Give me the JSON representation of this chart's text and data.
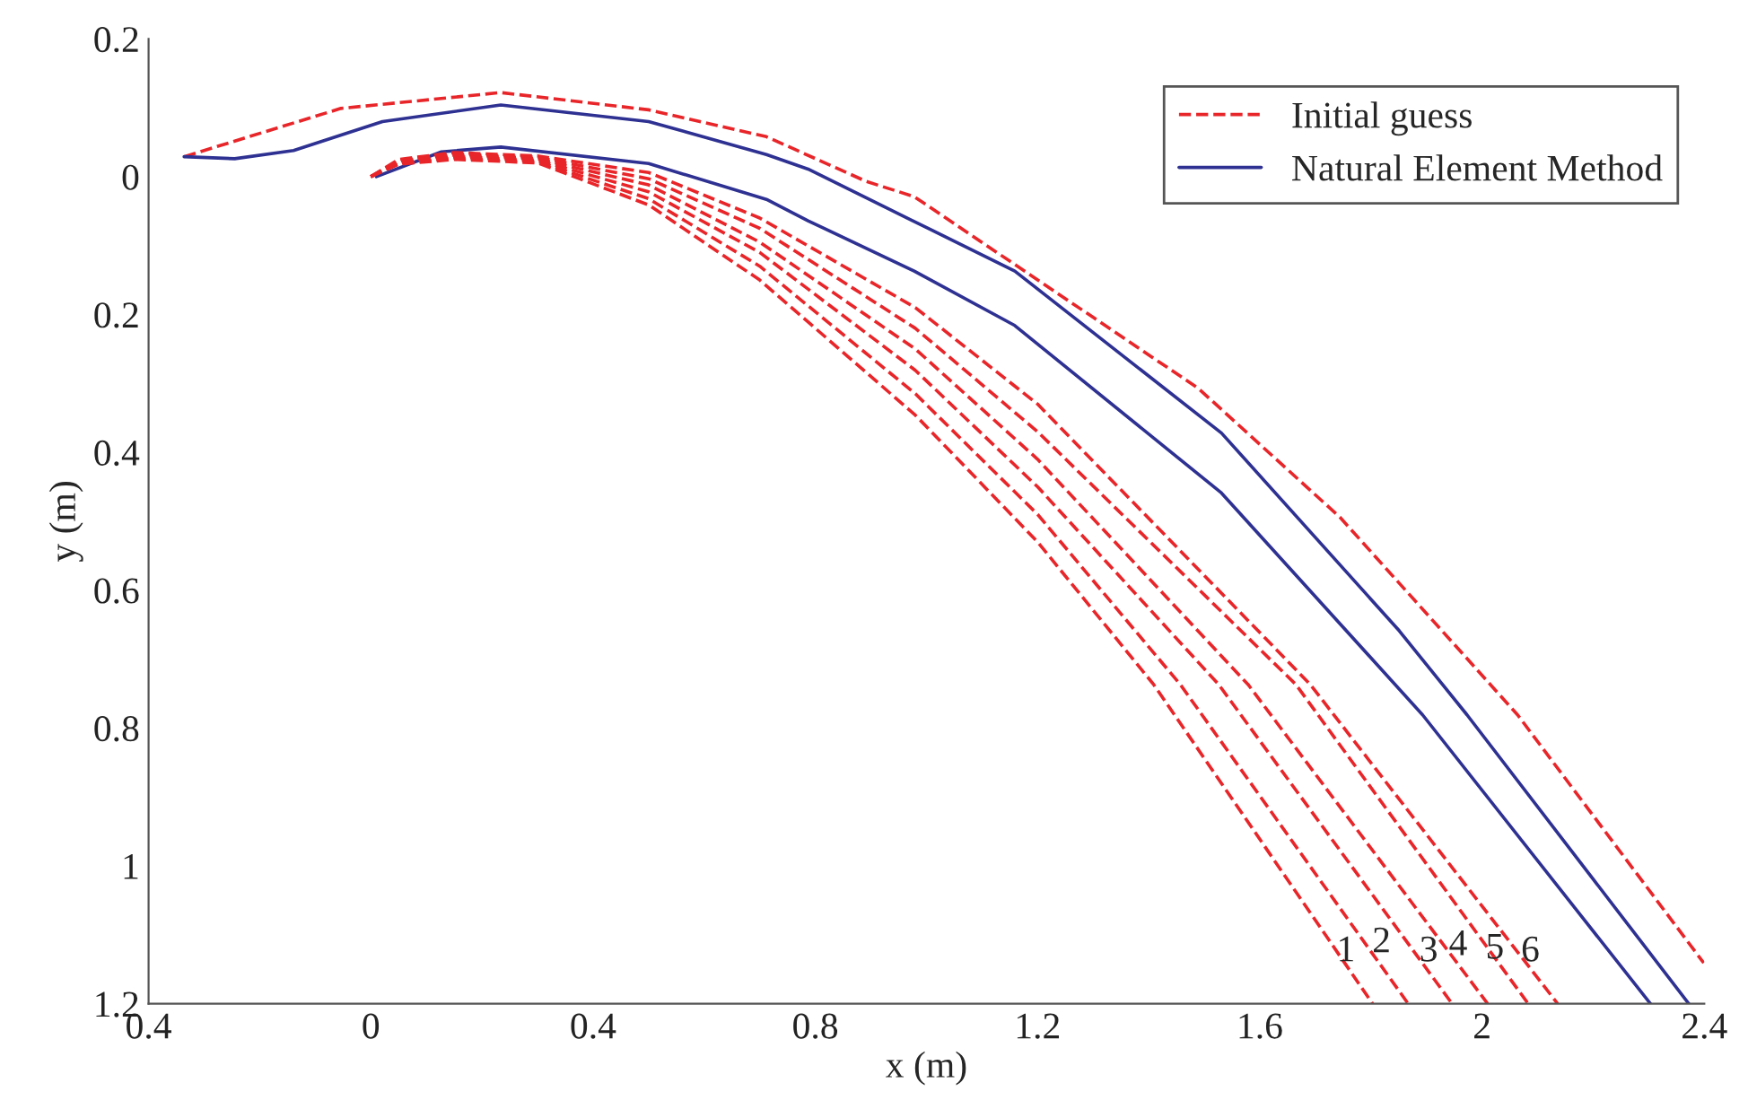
{
  "chart_data": {
    "type": "line",
    "xlabel": "x (m)",
    "ylabel": "y (m)",
    "xlim": [
      -0.4,
      2.4
    ],
    "ylim": [
      1.2,
      -0.2
    ],
    "xticks": [
      {
        "value": -0.4,
        "label": "0.4"
      },
      0,
      0.4,
      0.8,
      1.2,
      1.6,
      2,
      2.4
    ],
    "yticks": [
      {
        "value": -0.2,
        "label": "0.2"
      },
      0,
      0.2,
      0.4,
      0.6,
      0.8,
      1,
      1.2
    ],
    "grid": false,
    "legend": "top right",
    "marker": "none",
    "series": [
      {
        "name": "Initial guess",
        "color": "#e8262a",
        "line_style": "dashed",
        "x": [
          -0.336,
          -0.054,
          0.234,
          0.5,
          0.712,
          0.892,
          0.978,
          1.489,
          1.744,
          2.064,
          2.399
        ],
        "values": [
          -0.029,
          -0.099,
          -0.122,
          -0.097,
          -0.058,
          0.007,
          0.029,
          0.307,
          0.494,
          0.781,
          1.141
        ]
      },
      {
        "name": "Natural Element Method",
        "color": "#2e3192",
        "line_style": "solid",
        "x": [
          -0.336,
          -0.245,
          -0.139,
          0.021,
          0.234,
          0.5,
          0.712,
          0.787,
          1.159,
          1.531,
          1.851,
          1.973,
          2.372
        ],
        "values": [
          -0.029,
          -0.026,
          -0.038,
          -0.08,
          -0.104,
          -0.08,
          -0.032,
          -0.011,
          0.137,
          0.372,
          0.659,
          0.781,
          1.2
        ]
      },
      {
        "color": "#2e3192",
        "line_style": "solid",
        "x": [
          0.01,
          0.127,
          0.234,
          0.5,
          0.712,
          0.787,
          0.978,
          1.159,
          1.531,
          1.893,
          2.303
        ],
        "values": [
          0,
          -0.036,
          -0.043,
          -0.019,
          0.033,
          0.064,
          0.137,
          0.216,
          0.459,
          0.781,
          1.2
        ]
      },
      {
        "color": "#e8262a",
        "line_style": "dashed",
        "x": [
          0,
          0.05,
          0.15,
          0.3,
          0.5,
          0.7,
          0.98,
          1.2,
          1.409,
          1.803
        ],
        "values": [
          0,
          -0.018,
          -0.025,
          -0.02,
          0.041,
          0.15,
          0.346,
          0.53,
          0.737,
          1.2
        ]
      },
      {
        "color": "#e8262a",
        "line_style": "dashed",
        "x": [
          0,
          0.05,
          0.15,
          0.3,
          0.5,
          0.7,
          0.98,
          1.2,
          1.457,
          1.867
        ],
        "values": [
          0,
          -0.019,
          -0.027,
          -0.022,
          0.032,
          0.13,
          0.315,
          0.49,
          0.737,
          1.2
        ]
      },
      {
        "color": "#e8262a",
        "line_style": "dashed",
        "x": [
          0,
          0.05,
          0.15,
          0.3,
          0.5,
          0.7,
          0.98,
          1.2,
          1.526,
          1.946
        ],
        "values": [
          0,
          -0.02,
          -0.029,
          -0.024,
          0.022,
          0.11,
          0.281,
          0.45,
          0.737,
          1.2
        ]
      },
      {
        "color": "#e8262a",
        "line_style": "dashed",
        "x": [
          0,
          0.05,
          0.15,
          0.3,
          0.5,
          0.7,
          0.98,
          1.2,
          1.579,
          2.01
        ],
        "values": [
          0,
          -0.022,
          -0.031,
          -0.026,
          0.012,
          0.095,
          0.25,
          0.41,
          0.737,
          1.2
        ]
      },
      {
        "color": "#e8262a",
        "line_style": "dashed",
        "x": [
          0,
          0.05,
          0.15,
          0.3,
          0.5,
          0.7,
          0.98,
          1.2,
          1.665,
          2.083
        ],
        "values": [
          0,
          -0.023,
          -0.033,
          -0.028,
          0.003,
          0.075,
          0.22,
          0.37,
          0.737,
          1.2
        ]
      },
      {
        "color": "#e8262a",
        "line_style": "dashed",
        "x": [
          0,
          0.05,
          0.15,
          0.3,
          0.5,
          0.7,
          0.98,
          1.2,
          1.691,
          2.136
        ],
        "values": [
          0,
          -0.025,
          -0.035,
          -0.03,
          -0.006,
          0.06,
          0.19,
          0.33,
          0.737,
          1.2
        ]
      }
    ],
    "annotations": [
      {
        "text": "1",
        "x": 1.755,
        "y": 1.15
      },
      {
        "text": "2",
        "x": 1.819,
        "y": 1.137
      },
      {
        "text": "3",
        "x": 1.904,
        "y": 1.15
      },
      {
        "text": "4",
        "x": 1.957,
        "y": 1.141
      },
      {
        "text": "5",
        "x": 2.023,
        "y": 1.146
      },
      {
        "text": "6",
        "x": 2.087,
        "y": 1.15
      }
    ]
  }
}
